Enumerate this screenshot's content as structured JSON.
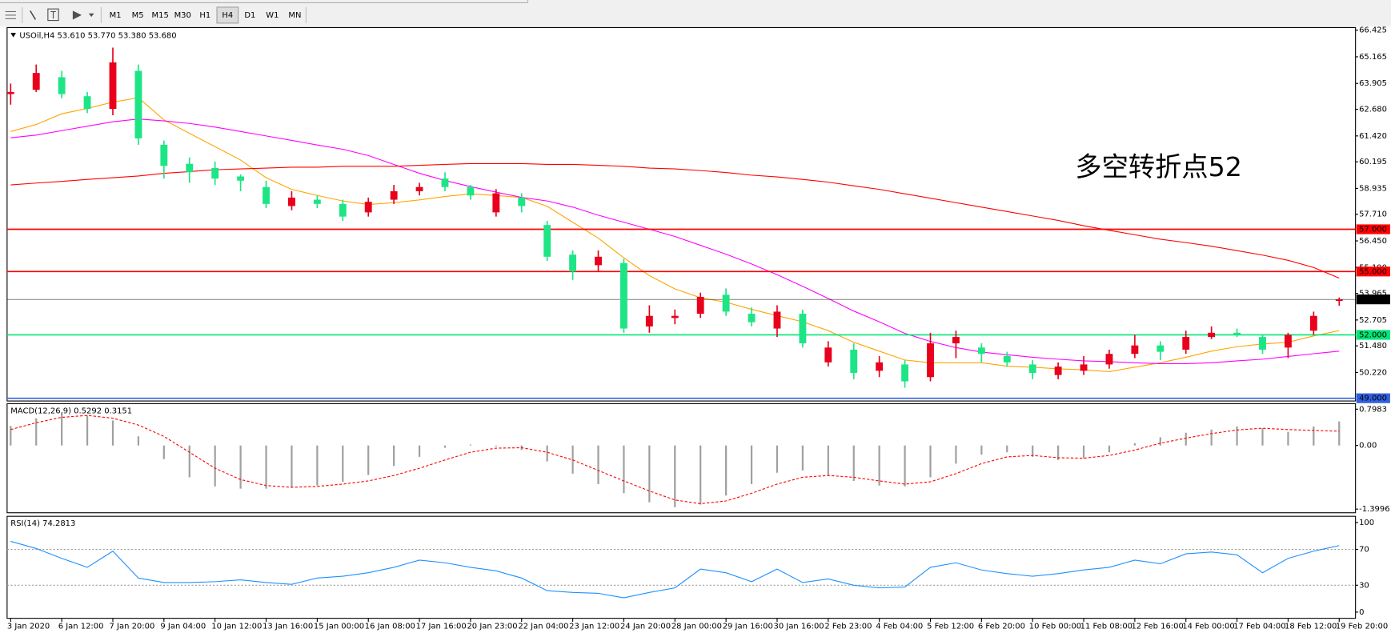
{
  "toolbar": {
    "timeframes": [
      "M1",
      "M5",
      "M15",
      "M30",
      "H1",
      "H4",
      "D1",
      "W1",
      "MN"
    ],
    "active": "H4"
  },
  "chart_data": [
    {
      "type": "candlestick",
      "title": "USOil,H4  53.610 53.770 53.380 53.680",
      "annotation": "多空转折点52",
      "annotation_color": "#e8001c",
      "up_color": "#e8001c",
      "down_color": "#1de586",
      "categories": [
        "3 Jan 2020",
        null,
        "6 Jan 12:00",
        null,
        "7 Jan 20:00",
        null,
        "9 Jan 04:00",
        null,
        "10 Jan 12:00",
        null,
        "13 Jan 16:00",
        null,
        "15 Jan 00:00",
        null,
        "16 Jan 08:00",
        null,
        "17 Jan 16:00",
        null,
        "20 Jan 23:00",
        null,
        "22 Jan 04:00",
        null,
        "23 Jan 12:00",
        null,
        "24 Jan 20:00",
        null,
        "28 Jan 00:00",
        null,
        "29 Jan 16:00",
        null,
        "30 Jan 16:00",
        null,
        "2 Feb 23:00",
        null,
        "4 Feb 04:00",
        null,
        "5 Feb 12:00",
        null,
        "6 Feb 20:00",
        null,
        "10 Feb 00:00",
        null,
        "11 Feb 08:00",
        null,
        "12 Feb 16:00",
        null,
        "14 Feb 00:00",
        null,
        "17 Feb 04:00",
        null,
        "18 Feb 12:00",
        null,
        "19 Feb 20:00"
      ],
      "open": [
        63.4,
        63.6,
        64.2,
        63.3,
        62.7,
        64.5,
        61.0,
        60.1,
        59.9,
        59.5,
        59.0,
        58.1,
        58.4,
        58.2,
        57.8,
        58.4,
        58.8,
        59.4,
        59.0,
        57.8,
        58.5,
        57.2,
        55.8,
        55.3,
        55.4,
        52.4,
        52.8,
        53.0,
        53.9,
        53.0,
        52.3,
        53.0,
        50.7,
        51.3,
        50.3,
        50.6,
        50.0,
        51.6,
        51.4,
        51.0,
        50.6,
        50.1,
        50.3,
        50.6,
        51.1,
        51.5,
        51.3,
        51.9,
        52.1,
        51.9,
        51.4,
        52.2,
        53.61
      ],
      "high": [
        63.9,
        64.8,
        64.5,
        63.5,
        65.6,
        64.8,
        61.2,
        60.4,
        60.2,
        59.6,
        59.3,
        58.8,
        58.6,
        58.4,
        58.5,
        59.1,
        59.2,
        59.7,
        59.1,
        58.9,
        58.7,
        57.4,
        56.0,
        56.0,
        55.6,
        53.4,
        53.2,
        54.0,
        54.2,
        53.3,
        53.4,
        53.2,
        51.7,
        51.6,
        51.0,
        50.8,
        52.1,
        52.2,
        51.6,
        51.2,
        50.8,
        50.7,
        51.0,
        51.3,
        52.0,
        51.7,
        52.2,
        52.4,
        52.3,
        52.0,
        52.1,
        53.1,
        53.77
      ],
      "low": [
        62.9,
        63.5,
        63.2,
        62.5,
        62.4,
        61.0,
        59.4,
        59.2,
        59.1,
        58.8,
        58.0,
        57.9,
        58.0,
        57.4,
        57.6,
        58.2,
        58.6,
        58.8,
        58.4,
        57.6,
        57.8,
        55.5,
        54.6,
        55.0,
        52.1,
        52.1,
        52.5,
        52.8,
        52.9,
        52.4,
        51.9,
        51.4,
        50.5,
        49.9,
        50.0,
        49.5,
        49.8,
        50.9,
        50.7,
        50.5,
        49.9,
        49.9,
        50.1,
        50.4,
        50.9,
        50.8,
        51.1,
        51.8,
        51.9,
        51.1,
        50.9,
        52.0,
        53.38
      ],
      "close": [
        63.5,
        64.4,
        63.4,
        62.7,
        64.9,
        61.3,
        60.0,
        59.7,
        59.4,
        59.3,
        58.2,
        58.5,
        58.2,
        57.6,
        58.3,
        58.8,
        59.0,
        59.0,
        58.6,
        58.7,
        58.1,
        55.7,
        55.0,
        55.7,
        52.3,
        52.9,
        52.9,
        53.8,
        53.1,
        52.6,
        53.1,
        51.6,
        51.4,
        50.2,
        50.7,
        49.8,
        51.6,
        51.9,
        51.1,
        50.7,
        50.2,
        50.5,
        50.6,
        51.1,
        51.5,
        51.2,
        51.9,
        52.1,
        52.0,
        51.3,
        52.0,
        52.9,
        53.68
      ],
      "moving_averages": [
        {
          "color": "#ffa500",
          "values": [
            61.63,
            61.96,
            62.47,
            62.72,
            63.02,
            63.23,
            62.18,
            61.54,
            60.91,
            60.28,
            59.44,
            58.89,
            58.6,
            58.34,
            58.17,
            58.26,
            58.39,
            58.55,
            58.68,
            58.6,
            58.51,
            58.09,
            57.33,
            56.58,
            55.65,
            54.81,
            54.18,
            53.76,
            53.55,
            53.21,
            52.91,
            52.62,
            52.2,
            51.65,
            51.23,
            50.81,
            50.68,
            50.68,
            50.68,
            50.52,
            50.47,
            50.39,
            50.35,
            50.26,
            50.47,
            50.68,
            50.94,
            51.23,
            51.44,
            51.57,
            51.65,
            51.95,
            52.2
          ]
        },
        {
          "color": "#ff00ff",
          "values": [
            61.33,
            61.46,
            61.67,
            61.88,
            62.09,
            62.22,
            62.13,
            62.01,
            61.84,
            61.63,
            61.42,
            61.21,
            60.99,
            60.79,
            60.49,
            60.07,
            59.65,
            59.31,
            59.02,
            58.76,
            58.51,
            58.34,
            58.05,
            57.67,
            57.33,
            57.0,
            56.66,
            56.24,
            55.82,
            55.36,
            54.85,
            54.3,
            53.72,
            53.13,
            52.62,
            52.07,
            51.69,
            51.4,
            51.19,
            51.06,
            50.94,
            50.85,
            50.77,
            50.73,
            50.68,
            50.64,
            50.64,
            50.68,
            50.77,
            50.85,
            50.98,
            51.11,
            51.23
          ]
        },
        {
          "color": "#ff0000",
          "values": [
            59.1,
            59.19,
            59.27,
            59.36,
            59.44,
            59.52,
            59.65,
            59.73,
            59.82,
            59.86,
            59.9,
            59.94,
            59.94,
            59.98,
            59.98,
            59.98,
            60.03,
            60.07,
            60.11,
            60.11,
            60.11,
            60.07,
            60.07,
            60.03,
            59.98,
            59.9,
            59.86,
            59.78,
            59.69,
            59.56,
            59.48,
            59.36,
            59.23,
            59.06,
            58.89,
            58.68,
            58.47,
            58.26,
            58.05,
            57.84,
            57.63,
            57.42,
            57.17,
            56.95,
            56.74,
            56.53,
            56.37,
            56.2,
            55.99,
            55.78,
            55.53,
            55.19,
            54.69
          ]
        }
      ],
      "levels": [
        {
          "value": 57,
          "label": "57.000",
          "color": "#ff0000"
        },
        {
          "value": 55,
          "label": "55.000",
          "color": "#ff0000"
        },
        {
          "value": 53.68,
          "label": "53.680",
          "color": "#000000"
        },
        {
          "value": 52,
          "label": "52.000",
          "color": "#00e676"
        },
        {
          "value": 49,
          "label": "49.000",
          "color": "#3060e0"
        }
      ],
      "ylim": [
        48.87,
        66.55
      ],
      "yticks": [
        66.425,
        65.165,
        63.905,
        {
          "value": 62.68,
          "label": "62.680"
        },
        {
          "value": 61.42,
          "label": "61.420"
        },
        60.195,
        58.935,
        {
          "value": 57.71,
          "label": "57.710"
        },
        {
          "value": 56.45,
          "label": "56.450"
        },
        {
          "value": 55.19,
          "label": "55.190"
        },
        53.965,
        52.705,
        {
          "value": 51.48,
          "label": "51.480"
        },
        {
          "value": 50.22,
          "label": "50.220"
        }
      ]
    },
    {
      "type": "macd",
      "title": "MACD(12,26,9) 0.5292 0.3151",
      "histogram_color": "#a0a0a0",
      "signal_color": "#ff0000",
      "histogram": [
        0.43,
        0.6,
        0.7,
        0.66,
        0.55,
        0.2,
        -0.3,
        -0.7,
        -0.9,
        -0.95,
        -0.95,
        -0.93,
        -0.88,
        -0.8,
        -0.65,
        -0.45,
        -0.25,
        -0.05,
        0.02,
        -0.02,
        -0.1,
        -0.35,
        -0.62,
        -0.85,
        -1.05,
        -1.25,
        -1.36,
        -1.3,
        -1.1,
        -0.85,
        -0.6,
        -0.55,
        -0.65,
        -0.78,
        -0.88,
        -0.9,
        -0.7,
        -0.4,
        -0.2,
        -0.15,
        -0.25,
        -0.32,
        -0.28,
        -0.15,
        0.05,
        0.18,
        0.28,
        0.35,
        0.42,
        0.38,
        0.3,
        0.42,
        0.5292
      ],
      "signal": [
        0.35,
        0.5,
        0.62,
        0.66,
        0.6,
        0.45,
        0.2,
        -0.15,
        -0.5,
        -0.75,
        -0.88,
        -0.92,
        -0.9,
        -0.85,
        -0.78,
        -0.66,
        -0.5,
        -0.32,
        -0.15,
        -0.06,
        -0.05,
        -0.15,
        -0.32,
        -0.55,
        -0.78,
        -1.0,
        -1.2,
        -1.28,
        -1.22,
        -1.05,
        -0.85,
        -0.7,
        -0.66,
        -0.7,
        -0.78,
        -0.85,
        -0.8,
        -0.62,
        -0.4,
        -0.25,
        -0.22,
        -0.27,
        -0.28,
        -0.22,
        -0.1,
        0.05,
        0.16,
        0.26,
        0.34,
        0.38,
        0.35,
        0.33,
        0.3151
      ],
      "ylim": [
        -1.48,
        0.92
      ],
      "yticks": [
        0.7983,
        {
          "value": 0,
          "label": "0.00"
        },
        -1.3996
      ]
    },
    {
      "type": "line",
      "title": "RSI(14) 74.2813",
      "color": "#1e90ff",
      "values": [
        79,
        71,
        60,
        50,
        68,
        38,
        33,
        33,
        34,
        36,
        33,
        31,
        38,
        40,
        44,
        50,
        58,
        55,
        50,
        46,
        38,
        24,
        22,
        21,
        16,
        22,
        27,
        48,
        44,
        34,
        48,
        33,
        37,
        30,
        27,
        28,
        50,
        55,
        47,
        43,
        40,
        43,
        47,
        50,
        58,
        54,
        65,
        67,
        64,
        44,
        60,
        68,
        74.2813
      ],
      "levels": [
        70,
        30
      ],
      "ylim": [
        -6.9,
        106.9
      ],
      "yticks": [
        100,
        70,
        30,
        0
      ]
    }
  ]
}
